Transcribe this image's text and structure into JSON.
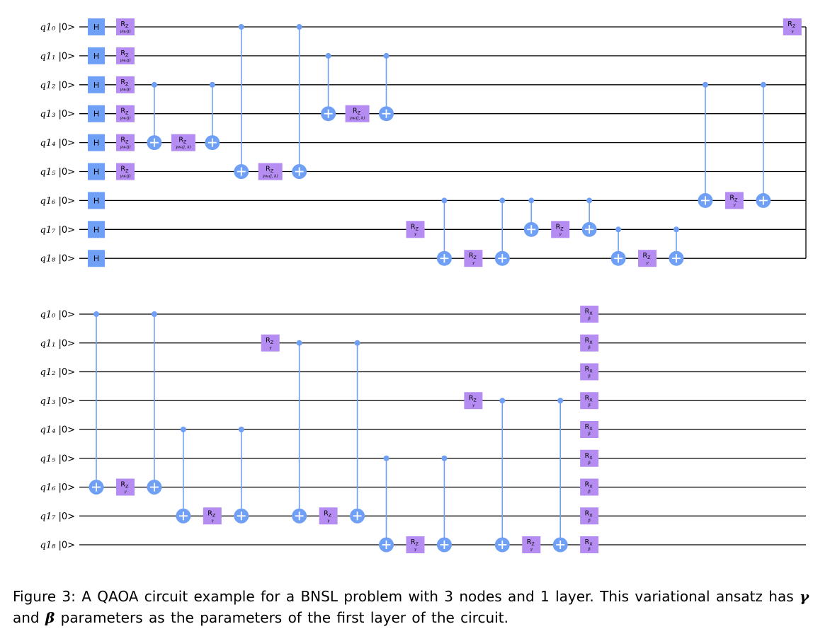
{
  "diagram": {
    "panels": [
      {
        "qubits": [
          "q1₀ |0>",
          "q1₁ |0>",
          "q1₂ |0>",
          "q1₃ |0>",
          "q1₄ |0>",
          "q1₅ |0>",
          "q1₆ |0>",
          "q1₇ |0>",
          "q1₈ |0>"
        ],
        "gates": [
          {
            "type": "H",
            "qubit": 0,
            "col": 0
          },
          {
            "type": "H",
            "qubit": 1,
            "col": 0
          },
          {
            "type": "H",
            "qubit": 2,
            "col": 0
          },
          {
            "type": "H",
            "qubit": 3,
            "col": 0
          },
          {
            "type": "H",
            "qubit": 4,
            "col": 0
          },
          {
            "type": "H",
            "qubit": 5,
            "col": 0
          },
          {
            "type": "H",
            "qubit": 6,
            "col": 0
          },
          {
            "type": "H",
            "qubit": 7,
            "col": 0
          },
          {
            "type": "H",
            "qubit": 8,
            "col": 0
          },
          {
            "type": "RZ",
            "qubit": 0,
            "col": 1,
            "param": "γwᵢ(j)"
          },
          {
            "type": "RZ",
            "qubit": 1,
            "col": 1,
            "param": "γwᵢ(j)"
          },
          {
            "type": "RZ",
            "qubit": 2,
            "col": 1,
            "param": "γwᵢ(j)"
          },
          {
            "type": "RZ",
            "qubit": 3,
            "col": 1,
            "param": "γwᵢ(j)"
          },
          {
            "type": "RZ",
            "qubit": 4,
            "col": 1,
            "param": "γwᵢ(j)"
          },
          {
            "type": "RZ",
            "qubit": 5,
            "col": 1,
            "param": "γwᵢ(j)"
          },
          {
            "type": "CX",
            "control": 2,
            "target": 4,
            "col": 2
          },
          {
            "type": "RZ",
            "qubit": 4,
            "col": 3,
            "param": "γwᵢ(j, k)"
          },
          {
            "type": "CX",
            "control": 2,
            "target": 4,
            "col": 4
          },
          {
            "type": "CX",
            "control": 0,
            "target": 5,
            "col": 5
          },
          {
            "type": "RZ",
            "qubit": 5,
            "col": 6,
            "param": "γwᵢ(j, k)"
          },
          {
            "type": "CX",
            "control": 0,
            "target": 5,
            "col": 7
          },
          {
            "type": "CX",
            "control": 1,
            "target": 3,
            "col": 8
          },
          {
            "type": "RZ",
            "qubit": 3,
            "col": 9,
            "param": "γwᵢ(j, k)"
          },
          {
            "type": "CX",
            "control": 1,
            "target": 3,
            "col": 10
          },
          {
            "type": "RZ",
            "qubit": 7,
            "col": 11,
            "param": "γ"
          },
          {
            "type": "CX",
            "control": 6,
            "target": 8,
            "col": 12
          },
          {
            "type": "RZ",
            "qubit": 8,
            "col": 13,
            "param": "γ"
          },
          {
            "type": "CX",
            "control": 6,
            "target": 8,
            "col": 14
          },
          {
            "type": "CX",
            "control": 6,
            "target": 7,
            "col": 15
          },
          {
            "type": "RZ",
            "qubit": 7,
            "col": 16,
            "param": "γ"
          },
          {
            "type": "CX",
            "control": 6,
            "target": 7,
            "col": 17
          },
          {
            "type": "CX",
            "control": 7,
            "target": 8,
            "col": 18
          },
          {
            "type": "RZ",
            "qubit": 8,
            "col": 19,
            "param": "γ"
          },
          {
            "type": "CX",
            "control": 7,
            "target": 8,
            "col": 20
          },
          {
            "type": "CX",
            "control": 2,
            "target": 6,
            "col": 21
          },
          {
            "type": "RZ",
            "qubit": 6,
            "col": 22,
            "param": "γ"
          },
          {
            "type": "CX",
            "control": 2,
            "target": 6,
            "col": 23
          },
          {
            "type": "RZ",
            "qubit": 0,
            "col": 24,
            "param": "γ"
          }
        ]
      },
      {
        "qubits": [
          "q1₀ |0>",
          "q1₁ |0>",
          "q1₂ |0>",
          "q1₃ |0>",
          "q1₄ |0>",
          "q1₅ |0>",
          "q1₆ |0>",
          "q1₇ |0>",
          "q1₈ |0>"
        ],
        "gates": [
          {
            "type": "CX",
            "control": 0,
            "target": 6,
            "col": 0
          },
          {
            "type": "RZ",
            "qubit": 6,
            "col": 1,
            "param": "γ"
          },
          {
            "type": "CX",
            "control": 0,
            "target": 6,
            "col": 2
          },
          {
            "type": "CX",
            "control": 4,
            "target": 7,
            "col": 3
          },
          {
            "type": "RZ",
            "qubit": 7,
            "col": 4,
            "param": "γ"
          },
          {
            "type": "CX",
            "control": 4,
            "target": 7,
            "col": 5
          },
          {
            "type": "RZ",
            "qubit": 1,
            "col": 6,
            "param": "γ"
          },
          {
            "type": "CX",
            "control": 1,
            "target": 7,
            "col": 7
          },
          {
            "type": "RZ",
            "qubit": 7,
            "col": 8,
            "param": "γ"
          },
          {
            "type": "CX",
            "control": 1,
            "target": 7,
            "col": 9
          },
          {
            "type": "CX",
            "control": 5,
            "target": 8,
            "col": 10
          },
          {
            "type": "RZ",
            "qubit": 8,
            "col": 11,
            "param": "γ"
          },
          {
            "type": "CX",
            "control": 5,
            "target": 8,
            "col": 12
          },
          {
            "type": "RZ",
            "qubit": 3,
            "col": 13,
            "param": "γ"
          },
          {
            "type": "CX",
            "control": 3,
            "target": 8,
            "col": 14
          },
          {
            "type": "RZ",
            "qubit": 8,
            "col": 15,
            "param": "γ"
          },
          {
            "type": "CX",
            "control": 3,
            "target": 8,
            "col": 16
          },
          {
            "type": "RX",
            "qubit": 0,
            "col": 17,
            "param": "β"
          },
          {
            "type": "RX",
            "qubit": 1,
            "col": 17,
            "param": "β"
          },
          {
            "type": "RX",
            "qubit": 2,
            "col": 17,
            "param": "β"
          },
          {
            "type": "RX",
            "qubit": 3,
            "col": 17,
            "param": "β"
          },
          {
            "type": "RX",
            "qubit": 4,
            "col": 17,
            "param": "β"
          },
          {
            "type": "RX",
            "qubit": 5,
            "col": 17,
            "param": "β"
          },
          {
            "type": "RX",
            "qubit": 6,
            "col": 17,
            "param": "β"
          },
          {
            "type": "RX",
            "qubit": 7,
            "col": 17,
            "param": "β"
          },
          {
            "type": "RX",
            "qubit": 8,
            "col": 17,
            "param": "β"
          }
        ]
      }
    ]
  },
  "caption": {
    "text1": "Figure 3:  A QAOA circuit example for a BNSL problem with 3 nodes and 1 layer.  This variational ansatz has ",
    "gamma": "γ",
    "text2": " and ",
    "beta": "β",
    "text3": " parameters as the parameters of the first layer of the circuit."
  },
  "colors": {
    "wire": "#000000",
    "hadamard": "#6fa0f5",
    "cnot": "#6fa0f5",
    "rotation": "#b48cf2"
  }
}
